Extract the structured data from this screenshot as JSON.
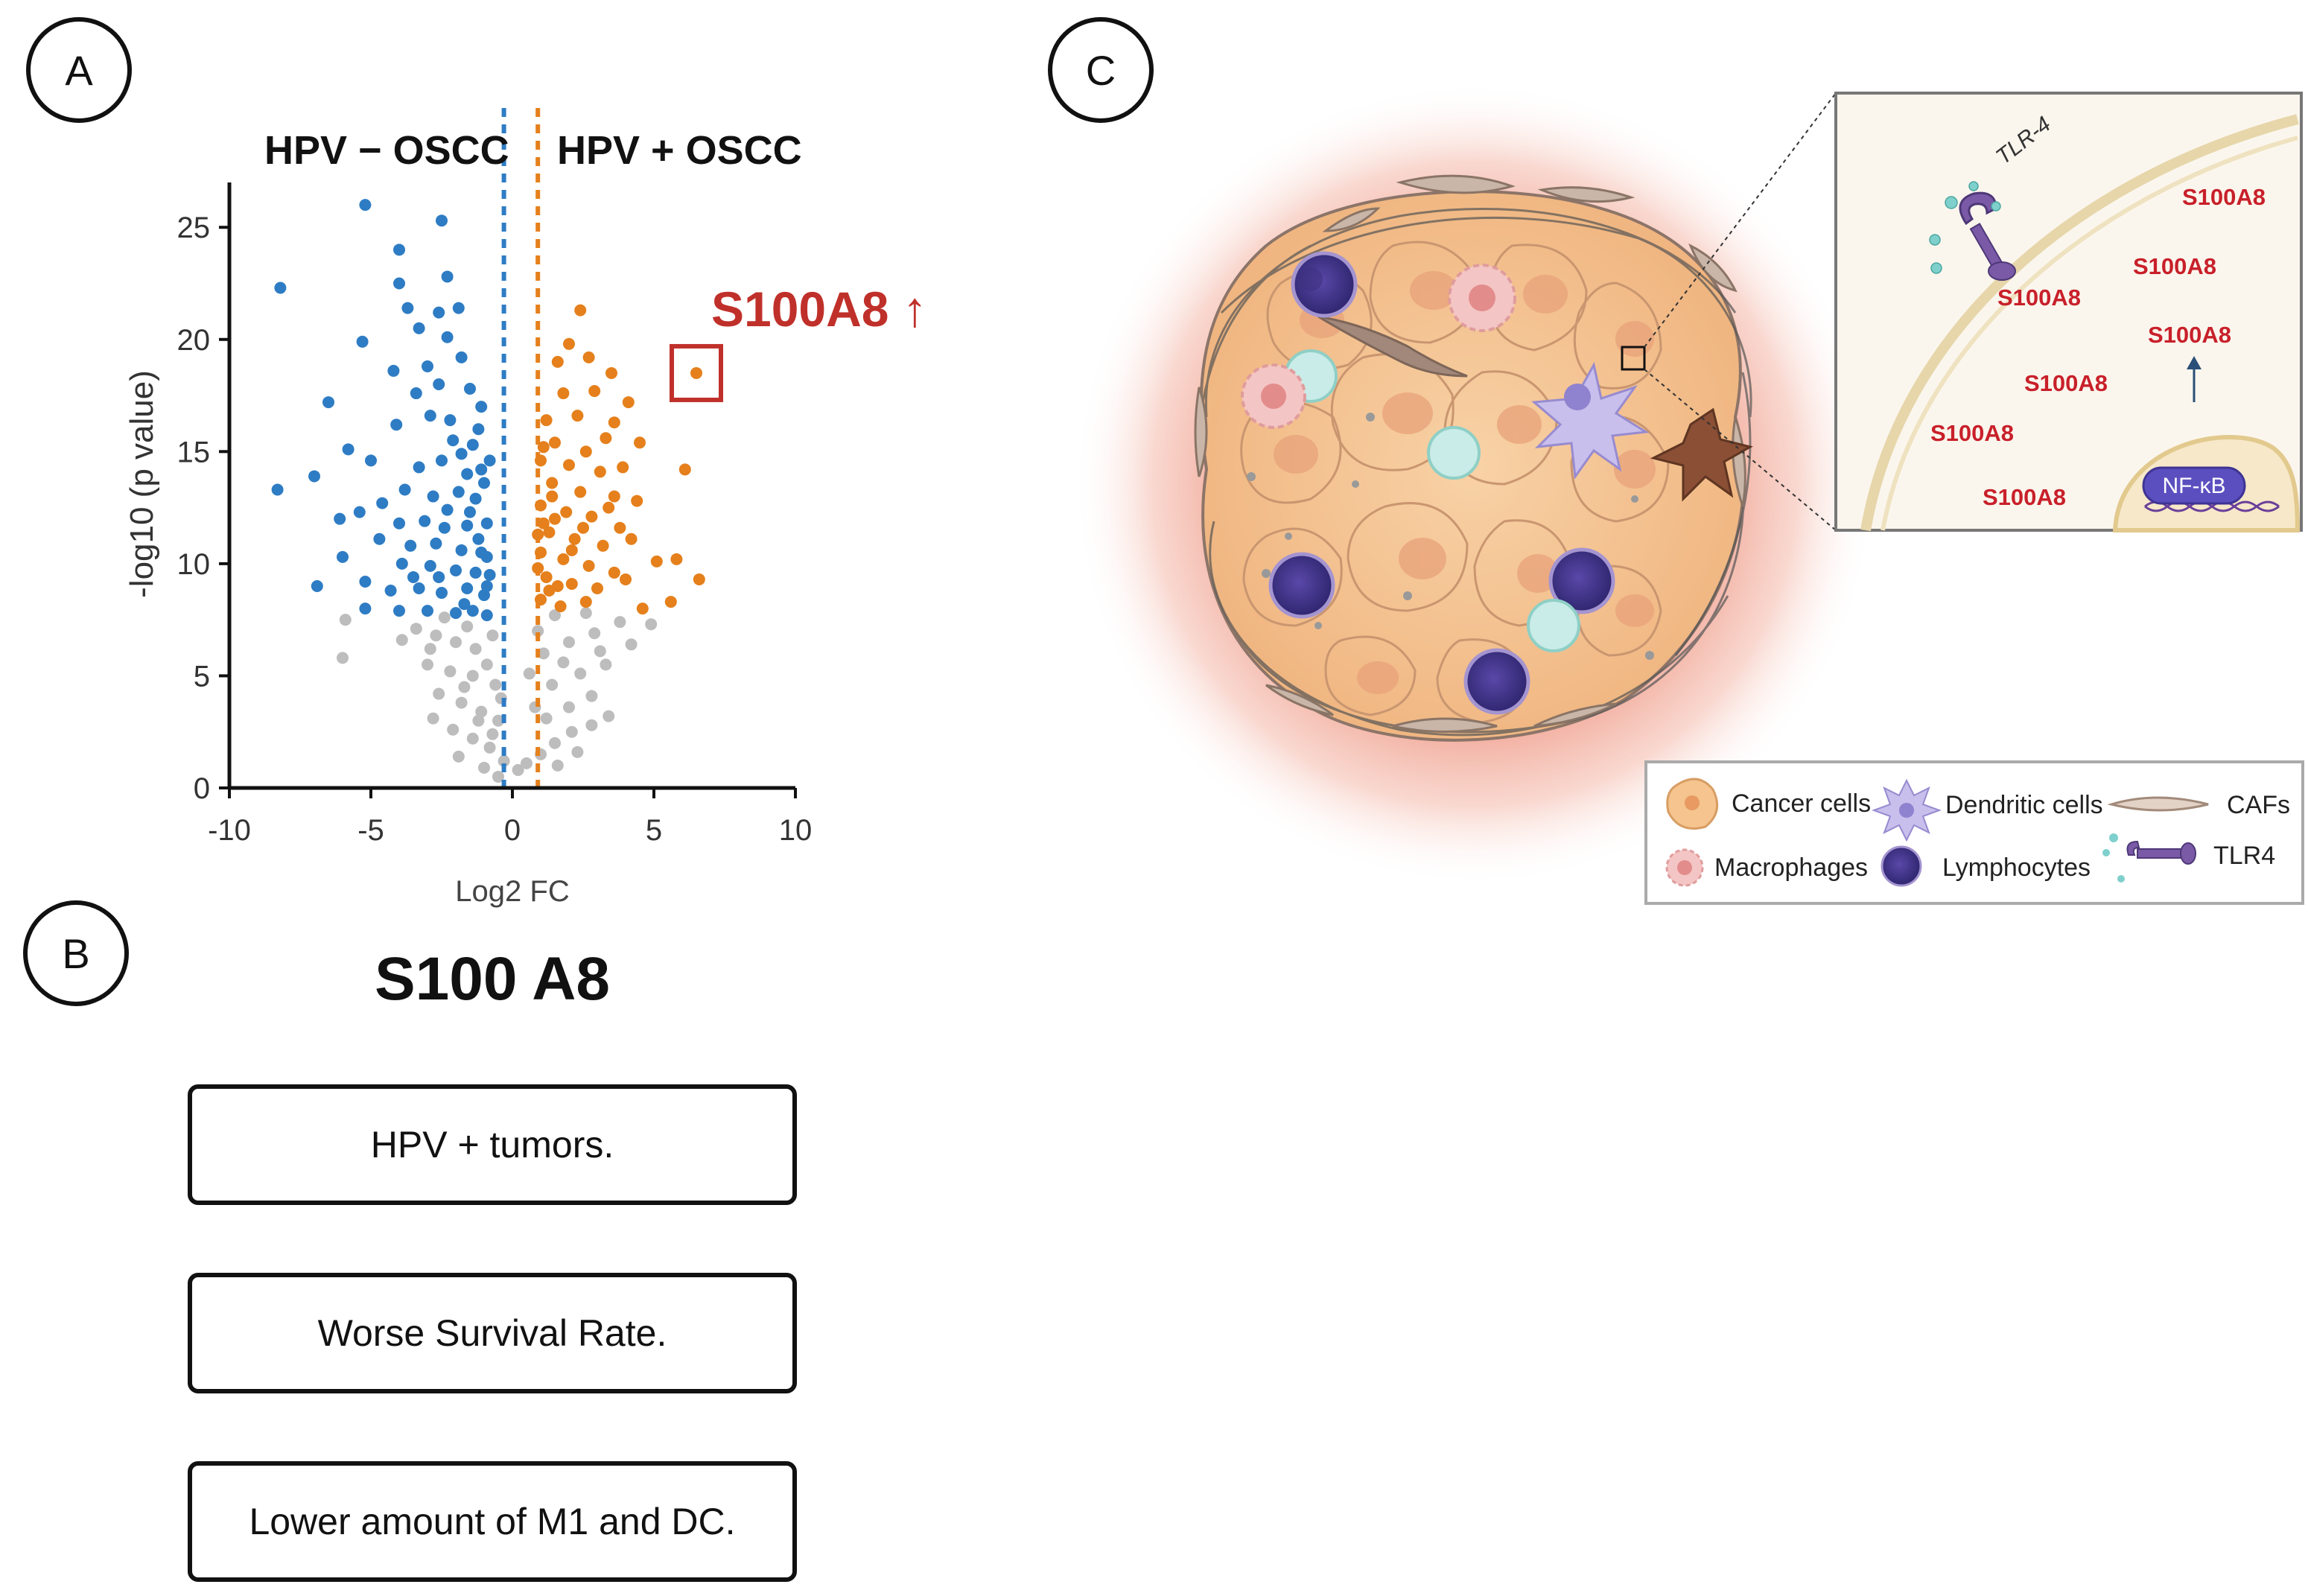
{
  "panels": {
    "a": "A",
    "b": "B",
    "c": "C"
  },
  "chart_data": {
    "type": "scatter",
    "title": "",
    "xlabel": "Log2 FC",
    "ylabel": "-log10 (p value)",
    "xlim": [
      -10,
      10
    ],
    "ylim": [
      0,
      27
    ],
    "xticks": [
      -10,
      -5,
      0,
      5,
      10
    ],
    "yticks": [
      0,
      5,
      10,
      15,
      20,
      25
    ],
    "thresholds": {
      "left": -0.3,
      "right": 0.9
    },
    "group_labels": {
      "left": "HPV − OSCC",
      "right": "HPV + OSCC"
    },
    "highlight": {
      "label": "S100A8 ↑",
      "x": 6.5,
      "y": 18.5
    },
    "colors": {
      "down": "#2e7cc4",
      "up": "#e5801c",
      "ns": "#bdbdbd",
      "highlight": "#c0302a"
    },
    "series": [
      {
        "name": "down",
        "points": [
          [
            -8.2,
            22.3
          ],
          [
            -5.2,
            26
          ],
          [
            -4,
            24
          ],
          [
            -2.5,
            25.3
          ],
          [
            -4,
            22.5
          ],
          [
            -2.3,
            22.8
          ],
          [
            -3.7,
            21.4
          ],
          [
            -2.6,
            21.2
          ],
          [
            -1.9,
            21.4
          ],
          [
            -3.3,
            20.5
          ],
          [
            -2.3,
            20.1
          ],
          [
            -5.3,
            19.9
          ],
          [
            -4.2,
            18.6
          ],
          [
            -3.0,
            18.8
          ],
          [
            -1.8,
            19.2
          ],
          [
            -2.6,
            18.0
          ],
          [
            -1.5,
            17.8
          ],
          [
            -3.4,
            17.6
          ],
          [
            -6.5,
            17.2
          ],
          [
            -4.1,
            16.2
          ],
          [
            -2.9,
            16.6
          ],
          [
            -2.2,
            16.4
          ],
          [
            -1.2,
            16.0
          ],
          [
            -5.8,
            15.1
          ],
          [
            -5,
            14.6
          ],
          [
            -3.3,
            14.3
          ],
          [
            -2.5,
            14.6
          ],
          [
            -1.8,
            14.9
          ],
          [
            -1.1,
            14.2
          ],
          [
            -7,
            13.9
          ],
          [
            -8.3,
            13.3
          ],
          [
            -3.8,
            13.3
          ],
          [
            -2.8,
            13.0
          ],
          [
            -1.9,
            13.2
          ],
          [
            -1.3,
            12.9
          ],
          [
            -5.4,
            12.3
          ],
          [
            -6.1,
            12.0
          ],
          [
            -4.0,
            11.8
          ],
          [
            -3.1,
            11.9
          ],
          [
            -2.4,
            11.6
          ],
          [
            -1.6,
            11.7
          ],
          [
            -0.9,
            11.8
          ],
          [
            -4.7,
            11.1
          ],
          [
            -3.6,
            10.8
          ],
          [
            -2.7,
            10.9
          ],
          [
            -1.8,
            10.6
          ],
          [
            -1.1,
            10.5
          ],
          [
            -6.0,
            10.3
          ],
          [
            -3.9,
            10.0
          ],
          [
            -2.9,
            9.9
          ],
          [
            -2.0,
            9.7
          ],
          [
            -1.3,
            9.6
          ],
          [
            -0.8,
            9.5
          ],
          [
            -6.9,
            9.0
          ],
          [
            -5.2,
            9.2
          ],
          [
            -4.3,
            8.8
          ],
          [
            -3.3,
            8.9
          ],
          [
            -2.5,
            8.7
          ],
          [
            -1.6,
            8.9
          ],
          [
            -1.0,
            8.6
          ],
          [
            -5.2,
            8.0
          ],
          [
            -4.0,
            7.9
          ],
          [
            -3.0,
            7.9
          ],
          [
            -2.0,
            7.8
          ],
          [
            -1.4,
            7.9
          ],
          [
            -0.9,
            7.7
          ],
          [
            -2.6,
            9.4
          ],
          [
            -1.5,
            12.3
          ],
          [
            -1.0,
            13.6
          ],
          [
            -1.4,
            15.3
          ],
          [
            -0.9,
            10.3
          ],
          [
            -1.7,
            8.2
          ],
          [
            -2.3,
            12.4
          ],
          [
            -3.5,
            9.4
          ],
          [
            -4.6,
            12.7
          ],
          [
            -1.1,
            17.0
          ],
          [
            -0.8,
            14.6
          ],
          [
            -1.2,
            11.1
          ],
          [
            -0.9,
            9.0
          ],
          [
            -1.6,
            14.0
          ],
          [
            -2.1,
            15.5
          ]
        ]
      },
      {
        "name": "up",
        "points": [
          [
            2.4,
            21.3
          ],
          [
            2.0,
            19.8
          ],
          [
            1.6,
            19.0
          ],
          [
            2.7,
            19.2
          ],
          [
            3.5,
            18.5
          ],
          [
            1.8,
            17.6
          ],
          [
            2.9,
            17.7
          ],
          [
            4.1,
            17.2
          ],
          [
            1.2,
            16.4
          ],
          [
            2.3,
            16.6
          ],
          [
            3.6,
            16.3
          ],
          [
            4.5,
            15.4
          ],
          [
            1.5,
            15.4
          ],
          [
            2.6,
            15.0
          ],
          [
            3.3,
            15.6
          ],
          [
            1.0,
            14.6
          ],
          [
            2.0,
            14.4
          ],
          [
            3.1,
            14.1
          ],
          [
            3.9,
            14.3
          ],
          [
            1.4,
            13.6
          ],
          [
            2.4,
            13.2
          ],
          [
            3.6,
            13.0
          ],
          [
            4.4,
            12.8
          ],
          [
            6.1,
            14.2
          ],
          [
            1.0,
            12.6
          ],
          [
            1.9,
            12.3
          ],
          [
            2.8,
            12.1
          ],
          [
            3.8,
            11.6
          ],
          [
            1.3,
            11.4
          ],
          [
            2.2,
            11.1
          ],
          [
            3.2,
            10.8
          ],
          [
            4.2,
            11.1
          ],
          [
            1.0,
            10.5
          ],
          [
            1.8,
            10.2
          ],
          [
            2.7,
            9.9
          ],
          [
            3.6,
            9.6
          ],
          [
            5.1,
            10.1
          ],
          [
            5.8,
            10.2
          ],
          [
            1.2,
            9.4
          ],
          [
            2.1,
            9.1
          ],
          [
            3.0,
            8.9
          ],
          [
            4.0,
            9.3
          ],
          [
            6.6,
            9.3
          ],
          [
            1.0,
            8.4
          ],
          [
            1.7,
            8.1
          ],
          [
            2.6,
            8.3
          ],
          [
            4.6,
            8.0
          ],
          [
            5.6,
            8.3
          ],
          [
            1.4,
            13.0
          ],
          [
            1.1,
            11.8
          ],
          [
            0.9,
            9.8
          ],
          [
            1.5,
            12.0
          ],
          [
            2.1,
            10.6
          ],
          [
            1.3,
            8.8
          ],
          [
            0.9,
            11.3
          ],
          [
            1.1,
            15.2
          ],
          [
            1.6,
            9.0
          ],
          [
            2.5,
            11.6
          ],
          [
            3.4,
            12.5
          ]
        ]
      },
      {
        "name": "ns",
        "points": [
          [
            -5.9,
            7.5
          ],
          [
            -6.0,
            5.8
          ],
          [
            -3.4,
            7.1
          ],
          [
            -2.7,
            6.8
          ],
          [
            -2.0,
            6.5
          ],
          [
            -1.3,
            6.2
          ],
          [
            -0.7,
            6.8
          ],
          [
            -3.0,
            5.5
          ],
          [
            -2.2,
            5.2
          ],
          [
            -1.4,
            5.0
          ],
          [
            -0.6,
            4.6
          ],
          [
            -2.6,
            4.2
          ],
          [
            -1.8,
            3.8
          ],
          [
            -1.1,
            3.4
          ],
          [
            -0.5,
            3.0
          ],
          [
            -2.1,
            2.6
          ],
          [
            -1.4,
            2.2
          ],
          [
            -0.8,
            1.8
          ],
          [
            -0.3,
            1.2
          ],
          [
            -1.0,
            0.9
          ],
          [
            -0.5,
            0.5
          ],
          [
            -1.6,
            7.2
          ],
          [
            -0.9,
            5.5
          ],
          [
            -2.9,
            6.2
          ],
          [
            -1.7,
            4.5
          ],
          [
            -0.7,
            2.4
          ],
          [
            -2.4,
            7.6
          ],
          [
            -1.2,
            3.0
          ],
          [
            0.2,
            0.8
          ],
          [
            0.5,
            1.1
          ],
          [
            1.0,
            1.5
          ],
          [
            1.5,
            2.0
          ],
          [
            2.1,
            2.5
          ],
          [
            1.2,
            3.1
          ],
          [
            2.0,
            3.6
          ],
          [
            2.8,
            4.1
          ],
          [
            1.4,
            4.6
          ],
          [
            2.4,
            5.1
          ],
          [
            3.3,
            5.5
          ],
          [
            1.1,
            6.0
          ],
          [
            2.0,
            6.5
          ],
          [
            2.9,
            6.9
          ],
          [
            3.8,
            7.4
          ],
          [
            1.5,
            7.7
          ],
          [
            2.6,
            7.8
          ],
          [
            4.9,
            7.3
          ],
          [
            3.4,
            3.2
          ],
          [
            1.8,
            5.6
          ],
          [
            0.8,
            3.6
          ],
          [
            0.9,
            7.0
          ],
          [
            2.3,
            1.6
          ],
          [
            3.1,
            6.1
          ],
          [
            1.6,
            1.0
          ],
          [
            2.8,
            2.8
          ],
          [
            0.6,
            5.1
          ],
          [
            4.2,
            6.4
          ],
          [
            -0.4,
            4.0
          ],
          [
            -1.9,
            1.4
          ],
          [
            -2.8,
            3.1
          ],
          [
            -3.9,
            6.6
          ]
        ]
      }
    ]
  },
  "panel_b": {
    "title": "S100 A8",
    "boxes": [
      "HPV + tumors.",
      "Worse Survival Rate.",
      "Lower amount of  M1 and DC."
    ]
  },
  "panel_c": {
    "inset": {
      "receptor_label": "TLR-4",
      "protein_labels": [
        "S100A8",
        "S100A8",
        "S100A8",
        "S100A8",
        "S100A8",
        "S100A8",
        "S100A8"
      ],
      "nfkb_label": "NF-κB"
    },
    "legend": {
      "cancer": "Cancer cells",
      "dendritic": "Dendritic cells",
      "cafs": "CAFs",
      "macrophages": "Macrophages",
      "lymphocytes": "Lymphocytes",
      "tlr4": "TLR4"
    },
    "colors": {
      "s100a8": "#c8202a",
      "nfkb": "#5b4fc0",
      "cancer": "#f5c48f",
      "lymphocyte": "#4b3d98",
      "glow": "#f2a89a"
    }
  }
}
